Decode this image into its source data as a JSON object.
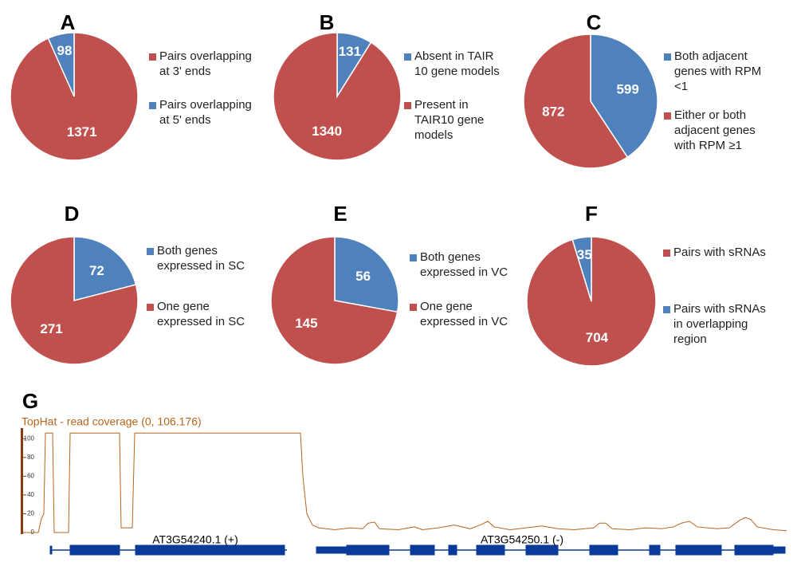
{
  "chart_data": [
    {
      "type": "pie",
      "title": "A",
      "categories": [
        "Pairs overlapping\nat 3' ends",
        "Pairs overlapping\nat 5' ends"
      ],
      "values": [
        1371,
        98
      ],
      "colors": [
        "#c0504d",
        "#4f81bd"
      ]
    },
    {
      "type": "pie",
      "title": "B",
      "categories": [
        "Absent in TAIR\n10 gene models",
        "Present in\nTAIR10 gene\nmodels"
      ],
      "values": [
        131,
        1340
      ],
      "colors": [
        "#4f81bd",
        "#c0504d"
      ]
    },
    {
      "type": "pie",
      "title": "C",
      "categories": [
        "Both adjacent\ngenes with RPM\n<1",
        "Either or both\nadjacent genes\nwith RPM ≥1"
      ],
      "values": [
        599,
        872
      ],
      "colors": [
        "#4f81bd",
        "#c0504d"
      ]
    },
    {
      "type": "pie",
      "title": "D",
      "categories": [
        "Both genes\nexpressed in SC",
        "One gene\nexpressed in SC"
      ],
      "values": [
        72,
        271
      ],
      "colors": [
        "#4f81bd",
        "#c0504d"
      ]
    },
    {
      "type": "pie",
      "title": "E",
      "categories": [
        "Both genes\nexpressed in VC",
        "One gene\nexpressed in VC"
      ],
      "values": [
        56,
        145
      ],
      "colors": [
        "#4f81bd",
        "#c0504d"
      ]
    },
    {
      "type": "pie",
      "title": "F",
      "categories": [
        "Pairs with sRNAs",
        "Pairs with sRNAs\nin overlapping\nregion"
      ],
      "values": [
        704,
        35
      ],
      "colors": [
        "#c0504d",
        "#4f81bd"
      ]
    },
    {
      "type": "line",
      "title": "G",
      "subtitle": "TopHat -  read coverage (0, 106.176)",
      "x": [
        30,
        48,
        52,
        55,
        57,
        66,
        68,
        86,
        88,
        150,
        152,
        166,
        169,
        377,
        380,
        385,
        392,
        400,
        420,
        440,
        455,
        462,
        470,
        476,
        500,
        520,
        530,
        550,
        570,
        590,
        605,
        612,
        620,
        640,
        660,
        680,
        700,
        720,
        745,
        752,
        760,
        768,
        790,
        810,
        830,
        845,
        855,
        865,
        875,
        900,
        915,
        928,
        935,
        942,
        950,
        970,
        987
      ],
      "series": [
        {
          "color": "#b5651d",
          "values": [
            0,
            0,
            15,
            20,
            106,
            106,
            0,
            0,
            106,
            106,
            5,
            5,
            106,
            106,
            60,
            20,
            8,
            5,
            3,
            5,
            4,
            10,
            11,
            4,
            3,
            6,
            3,
            5,
            8,
            4,
            9,
            12,
            6,
            3,
            5,
            7,
            4,
            3,
            5,
            10,
            10,
            4,
            3,
            5,
            4,
            6,
            10,
            12,
            6,
            4,
            5,
            13,
            16,
            14,
            6,
            3,
            2
          ]
        }
      ],
      "xlim": [
        0,
        1000
      ],
      "ylim": [
        0,
        106.176
      ],
      "yticks": [
        0,
        20,
        40,
        60,
        80,
        100
      ],
      "annotations": [
        "AT3G54240.1 (+)",
        "AT3G54250.1 (-)"
      ]
    }
  ]
}
